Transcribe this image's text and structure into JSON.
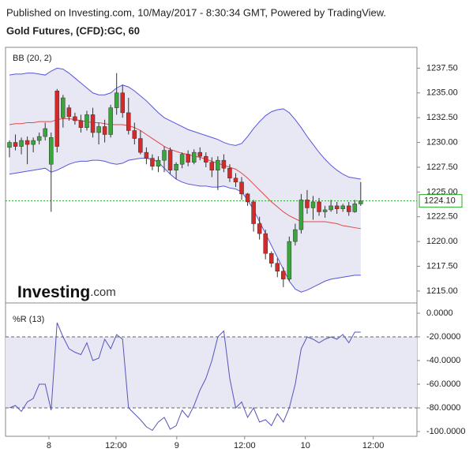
{
  "header": {
    "published": "Published on Investing.com, 10/May/2017 - 8:30:34 GMT, Powered by TradingView.",
    "symbol": "Gold Futures, (CFD):GC, 60"
  },
  "logo": {
    "brand": "Investing",
    "suffix": ".com"
  },
  "chart_data": [
    {
      "type": "candlestick",
      "label": "BB (20, 2)",
      "x": [
        0,
        1,
        2,
        3,
        4,
        5,
        6,
        7,
        8,
        9,
        10,
        11,
        12,
        13,
        14,
        15,
        16,
        17,
        18,
        19,
        20,
        21,
        22,
        23,
        24,
        25,
        26,
        27,
        28,
        29,
        30,
        31,
        32,
        33,
        34,
        35,
        36,
        37,
        38,
        39,
        40,
        41,
        42,
        43,
        44,
        45,
        46,
        47,
        48,
        49,
        50,
        51,
        52,
        53,
        54,
        55,
        56,
        57,
        58,
        59
      ],
      "open": [
        1229.5,
        1230,
        1229.6,
        1230.2,
        1229.8,
        1230.2,
        1230.6,
        1227.8,
        1235.2,
        1232.5,
        1233.5,
        1232.6,
        1232.2,
        1231.5,
        1232.8,
        1231,
        1231.6,
        1230.8,
        1233.5,
        1235,
        1233,
        1231.2,
        1230.4,
        1229,
        1228.4,
        1227.6,
        1228.2,
        1229.2,
        1227.2,
        1227.8,
        1228.8,
        1228,
        1229,
        1228.6,
        1228,
        1227.2,
        1228.2,
        1227.4,
        1226.4,
        1226,
        1224.8,
        1224,
        1221.8,
        1220.8,
        1218.8,
        1217.8,
        1217,
        1216.2,
        1220,
        1221.2,
        1224.2,
        1223.4,
        1224,
        1223,
        1223.2,
        1223.6,
        1223.3,
        1223.6,
        1223,
        1223.8
      ],
      "high": [
        1230.2,
        1230.8,
        1230.5,
        1230.6,
        1230.5,
        1231,
        1232,
        1231,
        1235.4,
        1234.8,
        1233.8,
        1233,
        1232.8,
        1233.2,
        1233.5,
        1232,
        1232.3,
        1233.8,
        1237,
        1235.8,
        1234.5,
        1232,
        1231.2,
        1229.5,
        1228.8,
        1228.6,
        1229.6,
        1229.5,
        1228,
        1229,
        1229.2,
        1229.3,
        1229.5,
        1229,
        1228.5,
        1228.6,
        1228.8,
        1227.8,
        1226.9,
        1226.5,
        1224.9,
        1224.2,
        1222.5,
        1221.2,
        1219,
        1218.3,
        1217.4,
        1220.5,
        1221.8,
        1224.8,
        1225.2,
        1224.6,
        1224.4,
        1223.6,
        1224.2,
        1224,
        1223.8,
        1224,
        1224.2,
        1226
      ],
      "low": [
        1228.5,
        1229.2,
        1228.8,
        1227.8,
        1229,
        1229.8,
        1230.2,
        1223,
        1229,
        1231.5,
        1232.2,
        1231.8,
        1231,
        1231.2,
        1230.5,
        1229.8,
        1230,
        1230.5,
        1232.8,
        1232.5,
        1230.8,
        1229.8,
        1228.8,
        1227.8,
        1227.2,
        1227,
        1227,
        1226.8,
        1226.3,
        1227.4,
        1227.6,
        1227.8,
        1228.2,
        1227.5,
        1226.5,
        1225.2,
        1227,
        1226,
        1225.5,
        1224.2,
        1223.6,
        1221,
        1220.2,
        1218.2,
        1217.4,
        1216.4,
        1215.4,
        1216,
        1219.6,
        1220.8,
        1222.8,
        1222.2,
        1222.6,
        1222.4,
        1223,
        1222.8,
        1223,
        1222.6,
        1222.9,
        1223.6
      ],
      "close": [
        1230,
        1229.6,
        1230.2,
        1229.8,
        1230.2,
        1230.6,
        1231.4,
        1230.5,
        1229.6,
        1234.5,
        1232.6,
        1232.2,
        1231.5,
        1232.8,
        1231,
        1231.6,
        1230.8,
        1233.5,
        1235,
        1233,
        1231.2,
        1230.4,
        1229,
        1228.4,
        1227.6,
        1228.2,
        1229.2,
        1227.2,
        1227.8,
        1228.8,
        1228,
        1229,
        1228.6,
        1228,
        1227.2,
        1228.2,
        1227.4,
        1226.4,
        1226,
        1224.8,
        1224,
        1221.8,
        1220.8,
        1218.8,
        1217.8,
        1217,
        1216.2,
        1220,
        1221.2,
        1224.2,
        1223.4,
        1224,
        1223,
        1223.2,
        1223.6,
        1223.3,
        1223.6,
        1223,
        1223.8,
        1224.1
      ],
      "up_color": "#3aa53a",
      "down_color": "#d42a2a",
      "bands": {
        "upper": [
          1236.8,
          1236.9,
          1236.9,
          1237,
          1237,
          1236.9,
          1236.8,
          1237.2,
          1237.5,
          1237.4,
          1237,
          1236.5,
          1236,
          1235.5,
          1235,
          1234.8,
          1234.8,
          1235,
          1235.5,
          1235.8,
          1235.6,
          1235.2,
          1234.7,
          1234.2,
          1233.6,
          1233,
          1232.5,
          1232.2,
          1231.9,
          1231.6,
          1231.3,
          1231.1,
          1230.9,
          1230.7,
          1230.5,
          1230.3,
          1230,
          1229.8,
          1229.7,
          1229.9,
          1230.6,
          1231.4,
          1232.1,
          1232.7,
          1233.1,
          1233.3,
          1233.4,
          1233,
          1232.3,
          1231.5,
          1230.6,
          1229.8,
          1229,
          1228.3,
          1227.7,
          1227.2,
          1226.8,
          1226.5,
          1226.4,
          1226.3
        ],
        "middle": [
          1231.8,
          1231.9,
          1231.9,
          1232,
          1232,
          1232.1,
          1232.1,
          1232.1,
          1232.3,
          1232.4,
          1232.4,
          1232.3,
          1232.2,
          1232.1,
          1232,
          1232,
          1231.9,
          1231.8,
          1231.8,
          1231.8,
          1231.7,
          1231.5,
          1231.2,
          1230.8,
          1230.4,
          1230,
          1229.6,
          1229.3,
          1229.1,
          1228.9,
          1228.8,
          1228.6,
          1228.5,
          1228.3,
          1228.1,
          1227.9,
          1227.7,
          1227.5,
          1227.3,
          1226.9,
          1226.4,
          1225.8,
          1225.2,
          1224.6,
          1224,
          1223.5,
          1223,
          1222.6,
          1222.3,
          1222,
          1222,
          1222,
          1222,
          1222,
          1221.9,
          1221.8,
          1221.6,
          1221.5,
          1221.4,
          1221.3
        ],
        "lower": [
          1226.8,
          1226.9,
          1227,
          1227.1,
          1227.2,
          1227.3,
          1227.4,
          1227,
          1227.2,
          1227.5,
          1227.8,
          1228,
          1228.1,
          1228.1,
          1228.2,
          1228.2,
          1228.1,
          1227.9,
          1227.8,
          1227.9,
          1228.2,
          1228.3,
          1228.4,
          1228.4,
          1228.3,
          1228,
          1227.4,
          1226.8,
          1226.3,
          1226,
          1225.8,
          1225.7,
          1225.6,
          1225.6,
          1225.5,
          1225.5,
          1225.6,
          1225.4,
          1225.3,
          1225,
          1224.2,
          1223.2,
          1222,
          1220.8,
          1219.6,
          1218.4,
          1217.2,
          1216,
          1215.2,
          1214.9,
          1215.1,
          1215.4,
          1215.7,
          1216,
          1216.2,
          1216.3,
          1216.4,
          1216.5,
          1216.6,
          1216.6
        ],
        "line_color": "#5555dd",
        "middle_color": "#e04848",
        "fill": "#e8e8f4"
      },
      "last_price": {
        "value": 1224.1,
        "label": "1224.10",
        "color": "#22aa22"
      },
      "xlim": [
        -0.66,
        68.44
      ],
      "ylim": [
        1213.8,
        1239.6
      ],
      "yticks": [
        {
          "value": 1215,
          "label": "1215.00"
        },
        {
          "value": 1217.5,
          "label": "1217.50"
        },
        {
          "value": 1220,
          "label": "1220.00"
        },
        {
          "value": 1222.5,
          "label": "1222.50"
        },
        {
          "value": 1225,
          "label": "1225.00"
        },
        {
          "value": 1227.5,
          "label": "1227.50"
        },
        {
          "value": 1230,
          "label": "1230.00"
        },
        {
          "value": 1232.5,
          "label": "1232.50"
        },
        {
          "value": 1235,
          "label": "1235.00"
        },
        {
          "value": 1237.5,
          "label": "1237.50"
        }
      ]
    },
    {
      "type": "line",
      "label": "%R (13)",
      "color": "#5555bb",
      "x": [
        0,
        1,
        2,
        3,
        4,
        5,
        6,
        7,
        8,
        9,
        10,
        11,
        12,
        13,
        14,
        15,
        16,
        17,
        18,
        19,
        20,
        21,
        22,
        23,
        24,
        25,
        26,
        27,
        28,
        29,
        30,
        31,
        32,
        33,
        34,
        35,
        36,
        37,
        38,
        39,
        40,
        41,
        42,
        43,
        44,
        45,
        46,
        47,
        48,
        49,
        50,
        51,
        52,
        53,
        54,
        55,
        56,
        57,
        58,
        59
      ],
      "values": [
        -80,
        -78,
        -83,
        -75,
        -72,
        -60,
        -60,
        -82,
        -8,
        -20,
        -30,
        -33,
        -35,
        -25,
        -40,
        -38,
        -22,
        -30,
        -18,
        -22,
        -80,
        -85,
        -90,
        -96,
        -99,
        -92,
        -88,
        -98,
        -95,
        -82,
        -88,
        -78,
        -65,
        -55,
        -40,
        -20,
        -15,
        -55,
        -80,
        -75,
        -88,
        -80,
        -92,
        -90,
        -95,
        -85,
        -92,
        -80,
        -60,
        -30,
        -20,
        -22,
        -25,
        -22,
        -20,
        -22,
        -18,
        -25,
        -16,
        -16
      ],
      "levels": [
        -20,
        -80
      ],
      "level_fill": "#e8e8f4",
      "xlim": [
        -0.66,
        68.44
      ],
      "ylim": [
        -104,
        8.67
      ],
      "yticks": [
        {
          "value": -100,
          "label": "-100.0000"
        },
        {
          "value": -80,
          "label": "-80.0000"
        },
        {
          "value": -60,
          "label": "-60.0000"
        },
        {
          "value": -40,
          "label": "-40.0000"
        },
        {
          "value": -20,
          "label": "-20.0000"
        },
        {
          "value": 0,
          "label": "0.0000"
        }
      ],
      "xticks": [
        {
          "value": 6.63,
          "label": "8"
        },
        {
          "value": 17.9,
          "label": "12:00"
        },
        {
          "value": 28.1,
          "label": "9"
        },
        {
          "value": 39.5,
          "label": "12:00"
        },
        {
          "value": 49.7,
          "label": "10"
        },
        {
          "value": 61.1,
          "label": "12:00"
        }
      ]
    }
  ]
}
